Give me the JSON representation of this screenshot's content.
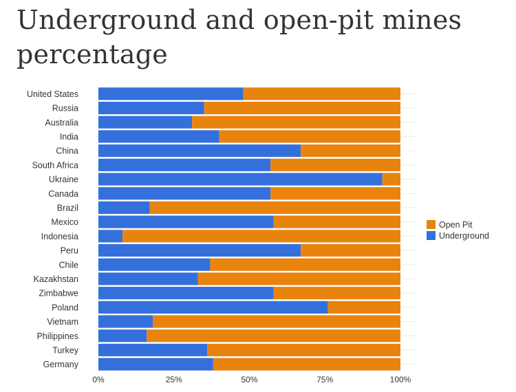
{
  "chart_data": {
    "type": "bar",
    "orientation": "horizontal",
    "stacked": "percent",
    "title": "Underground and open-pit mines percentage",
    "categories": [
      "United States",
      "Russia",
      "Australia",
      "India",
      "China",
      "South Africa",
      "Ukraine",
      "Canada",
      "Brazil",
      "Mexico",
      "Indonesia",
      "Peru",
      "Chile",
      "Kazakhstan",
      "Zimbabwe",
      "Poland",
      "Vietnam",
      "Philippines",
      "Turkey",
      "Germany"
    ],
    "series": [
      {
        "name": "Underground",
        "color": "#3470dc",
        "values": [
          48,
          35,
          31,
          40,
          67,
          57,
          94,
          57,
          17,
          58,
          8,
          67,
          37,
          33,
          58,
          76,
          18,
          16,
          36,
          38
        ]
      },
      {
        "name": "Open Pit",
        "color": "#e8840e",
        "values": [
          52,
          65,
          69,
          60,
          33,
          43,
          6,
          43,
          83,
          42,
          92,
          33,
          63,
          67,
          42,
          24,
          82,
          84,
          64,
          62
        ]
      }
    ],
    "xaxis": {
      "ticks": [
        "0%",
        "25%",
        "50%",
        "75%",
        "100%"
      ],
      "tick_values": [
        0,
        25,
        50,
        75,
        100
      ]
    },
    "xlim": [
      0,
      100
    ],
    "grid": true,
    "legend": {
      "placement": "right",
      "items": [
        "Open Pit",
        "Underground"
      ]
    }
  }
}
